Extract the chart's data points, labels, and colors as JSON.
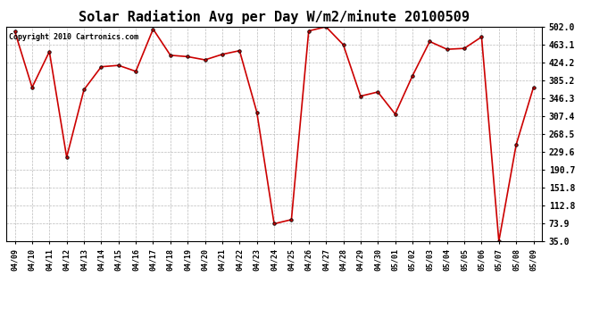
{
  "title": "Solar Radiation Avg per Day W/m2/minute 20100509",
  "copyright": "Copyright 2010 Cartronics.com",
  "dates": [
    "04/09",
    "04/10",
    "04/11",
    "04/12",
    "04/13",
    "04/14",
    "04/15",
    "04/16",
    "04/17",
    "04/18",
    "04/19",
    "04/20",
    "04/21",
    "04/22",
    "04/23",
    "04/24",
    "04/25",
    "04/26",
    "04/27",
    "04/28",
    "04/29",
    "04/30",
    "05/01",
    "05/02",
    "05/03",
    "05/04",
    "05/05",
    "05/06",
    "05/07",
    "05/08",
    "05/09"
  ],
  "values": [
    492.0,
    370.0,
    448.0,
    218.0,
    365.0,
    415.0,
    418.0,
    405.0,
    497.0,
    440.0,
    437.0,
    430.0,
    442.0,
    450.0,
    316.0,
    73.0,
    82.0,
    493.0,
    502.0,
    463.0,
    351.0,
    360.0,
    312.0,
    395.0,
    470.0,
    453.0,
    455.0,
    480.0,
    35.0,
    245.0,
    370.0
  ],
  "line_color": "#cc0000",
  "marker_color": "#000000",
  "bg_color": "#ffffff",
  "grid_color": "#bbbbbb",
  "yticks": [
    35.0,
    73.9,
    112.8,
    151.8,
    190.7,
    229.6,
    268.5,
    307.4,
    346.3,
    385.2,
    424.2,
    463.1,
    502.0
  ],
  "ylim": [
    35.0,
    502.0
  ],
  "title_fontsize": 11,
  "copyright_fontsize": 6,
  "tick_fontsize": 7,
  "xtick_fontsize": 6
}
